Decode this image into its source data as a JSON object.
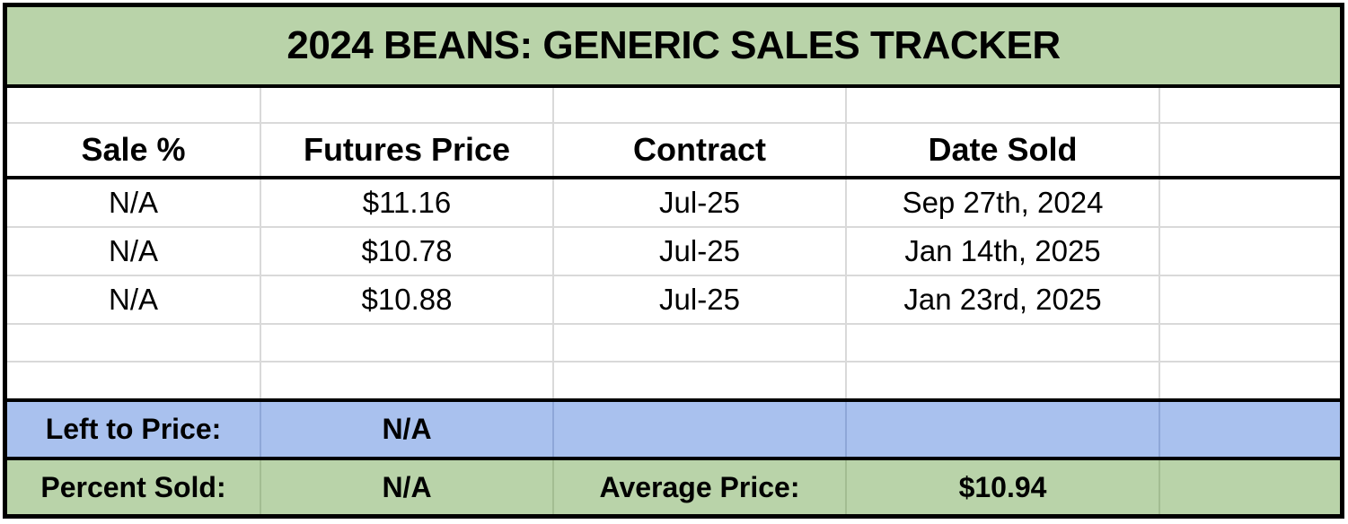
{
  "title": "2024 BEANS: GENERIC SALES TRACKER",
  "header": {
    "col1": "Sale %",
    "col2": "Futures Price",
    "col3": "Contract",
    "col4": "Date Sold",
    "col5": ""
  },
  "sales": [
    {
      "sale_pct": "N/A",
      "futures_price": "$11.16",
      "contract": "Jul-25",
      "date_sold": "Sep 27th, 2024"
    },
    {
      "sale_pct": "N/A",
      "futures_price": "$10.78",
      "contract": "Jul-25",
      "date_sold": "Jan 14th, 2025"
    },
    {
      "sale_pct": "N/A",
      "futures_price": "$10.88",
      "contract": "Jul-25",
      "date_sold": "Jan 23rd, 2025"
    }
  ],
  "summary": {
    "left_to_price": {
      "label": "Left to Price:",
      "value": "N/A"
    },
    "percent_sold": {
      "label": "Percent Sold:",
      "value": "N/A"
    },
    "average_price": {
      "label": "Average Price:",
      "value": "$10.94"
    }
  },
  "colors": {
    "title_green": "#b9d3a9",
    "summary_blue": "#a9c1ee",
    "summary_green": "#b9d3a9",
    "grid_line": "#d9d9d9",
    "border_black": "#000000"
  }
}
